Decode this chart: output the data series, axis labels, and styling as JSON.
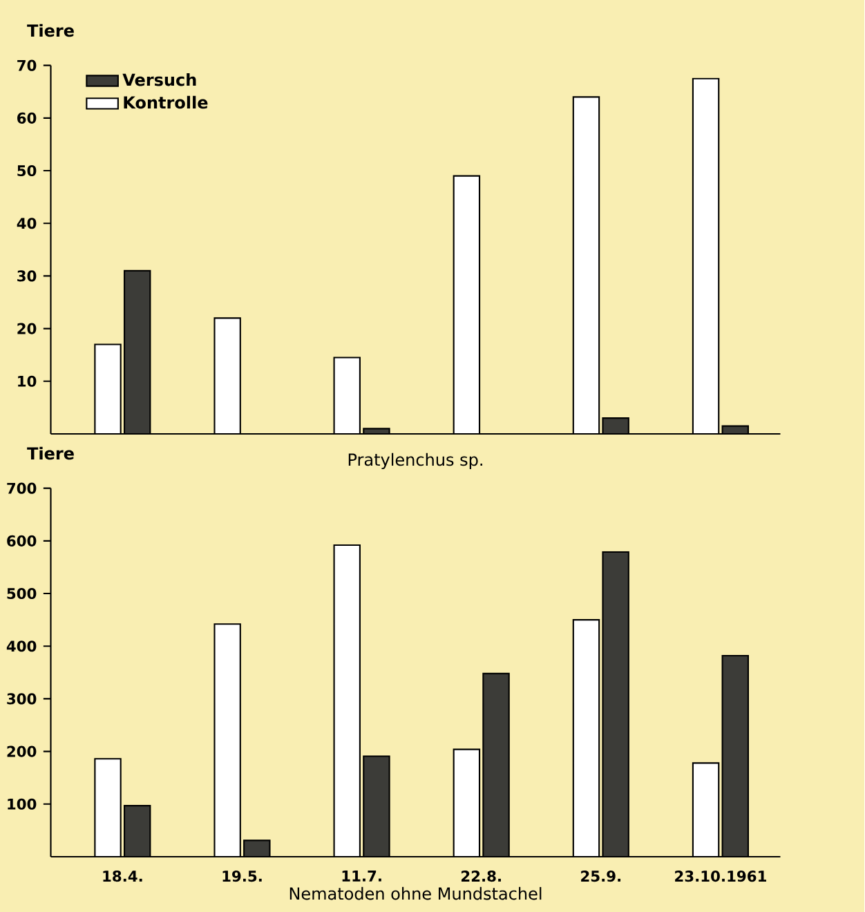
{
  "chart_data": [
    {
      "type": "bar",
      "xlabel": "Pratylenchus sp.",
      "ylabel": "Tiere",
      "categories": [
        "18.4.",
        "19.5.",
        "11.7.",
        "22.8.",
        "25.9.",
        "23.10.1961"
      ],
      "series": [
        {
          "name": "Versuch",
          "color": "#3c3c38",
          "values": [
            31,
            0,
            1,
            0,
            3,
            1.5
          ]
        },
        {
          "name": "Kontrolle",
          "color": "#ffffff",
          "values": [
            17,
            22,
            14.5,
            49,
            64,
            67.5
          ]
        }
      ],
      "ylim": [
        0,
        70
      ],
      "yticks": [
        10,
        20,
        30,
        40,
        50,
        60,
        70
      ],
      "legend": "top left",
      "tick_labels": "y"
    },
    {
      "type": "bar",
      "xlabel": "Nematoden ohne Mundstachel",
      "ylabel": "Tiere",
      "categories": [
        "18.4.",
        "19.5.",
        "11.7.",
        "22.8.",
        "25.9.",
        "23.10.1961"
      ],
      "series": [
        {
          "color": "#3c3c38",
          "values": [
            97,
            31,
            191,
            348,
            579,
            382
          ]
        },
        {
          "color": "#ffffff",
          "values": [
            186,
            442,
            592,
            204,
            450,
            178
          ]
        }
      ],
      "ylim": [
        0,
        700
      ],
      "yticks": [
        100,
        200,
        300,
        400,
        500,
        600,
        700
      ]
    }
  ]
}
